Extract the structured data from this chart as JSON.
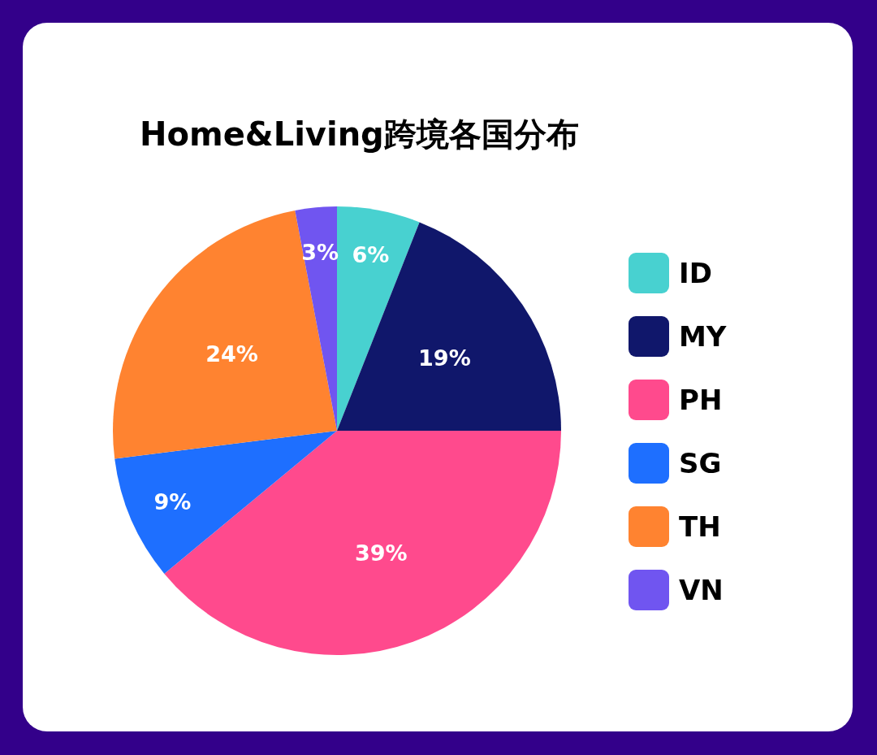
{
  "chart_data": {
    "type": "pie",
    "title": "Home&Living跨境各国分布",
    "categories": [
      "ID",
      "MY",
      "PH",
      "SG",
      "TH",
      "VN"
    ],
    "values": [
      6,
      19,
      39,
      9,
      24,
      3
    ],
    "colors": [
      "#48d1d0",
      "#10176b",
      "#ff4a8d",
      "#1e6fff",
      "#ff8330",
      "#7055f0"
    ],
    "value_labels": [
      "6%",
      "19%",
      "39%",
      "9%",
      "24%",
      "3%"
    ],
    "legend": "right"
  }
}
